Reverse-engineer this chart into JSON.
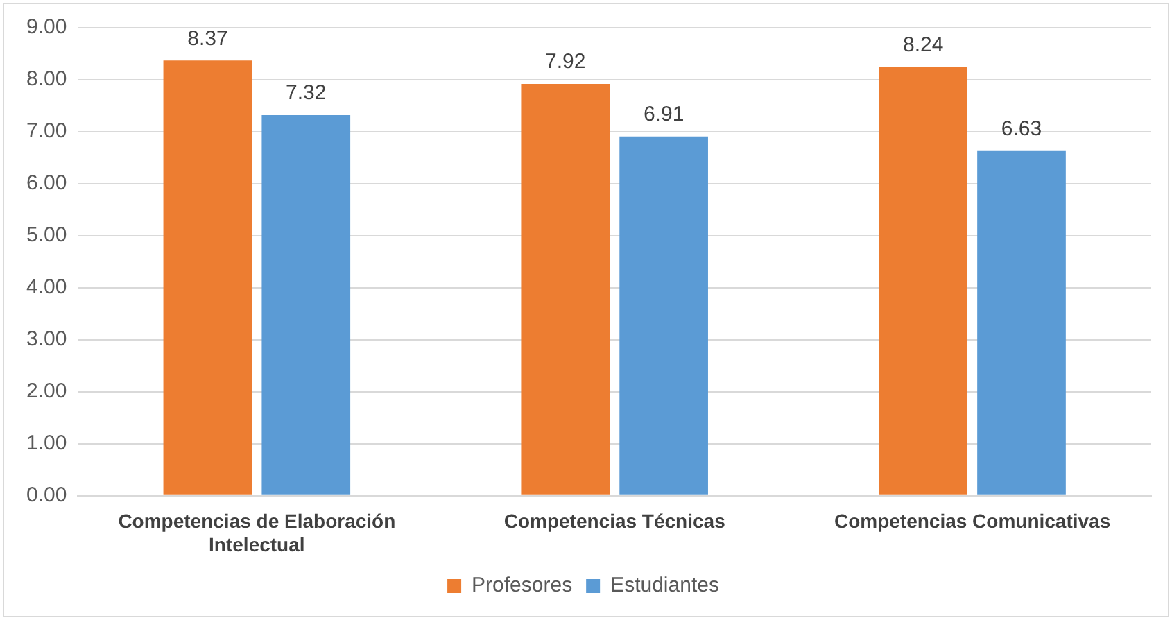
{
  "chart_data": {
    "type": "bar",
    "categories": [
      "Competencias de Elaboración Intelectual",
      "Competencias Técnicas",
      "Competencias Comunicativas"
    ],
    "series": [
      {
        "name": "Profesores",
        "color": "#ed7d31",
        "values": [
          8.37,
          7.92,
          8.24
        ]
      },
      {
        "name": "Estudiantes",
        "color": "#5b9bd5",
        "values": [
          7.32,
          6.91,
          6.63
        ]
      }
    ],
    "ylim": [
      0,
      9
    ],
    "yticks": [
      {
        "value": 0,
        "label": "0.00"
      },
      {
        "value": 1,
        "label": "1.00"
      },
      {
        "value": 2,
        "label": "2.00"
      },
      {
        "value": 3,
        "label": "3.00"
      },
      {
        "value": 4,
        "label": "4.00"
      },
      {
        "value": 5,
        "label": "5.00"
      },
      {
        "value": 6,
        "label": "6.00"
      },
      {
        "value": 7,
        "label": "7.00"
      },
      {
        "value": 8,
        "label": "8.00"
      },
      {
        "value": 9,
        "label": "9.00"
      }
    ],
    "grid": "y",
    "legend": "bottom",
    "data_labels": true
  }
}
